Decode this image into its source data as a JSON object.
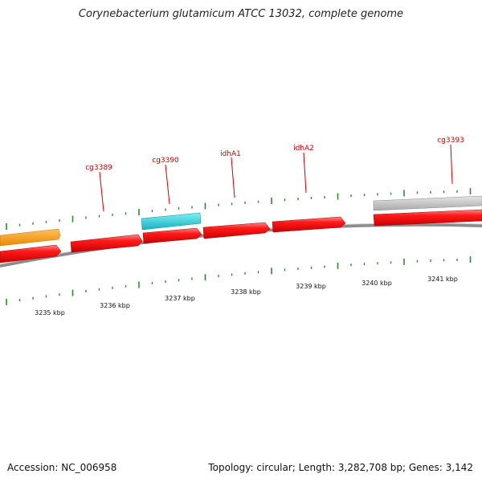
{
  "title": "Corynebacterium glutamicum ATCC 13032, complete genome",
  "accession_text": "Accession: NC_006958",
  "stats_text": "Topology: circular; Length: 3,282,708 bp; Genes: 3,142",
  "colors": {
    "backbone": "#8c8c8c",
    "gene_red": "#ee1111",
    "gene_orange": "#f5a020",
    "gene_cyan": "#22c8d2",
    "gene_grey": "#bdbdbd",
    "tick": "#2e8b2e",
    "label": "#cc0000"
  },
  "gene_labels": [
    "cg3389",
    "cg3390",
    "idhA1",
    "idhA2",
    "cg3393"
  ],
  "scale_labels": [
    "3235 kbp",
    "3236 kbp",
    "3237 kbp",
    "3238 kbp",
    "3239 kbp",
    "3240 kbp",
    "3241 kbp"
  ]
}
